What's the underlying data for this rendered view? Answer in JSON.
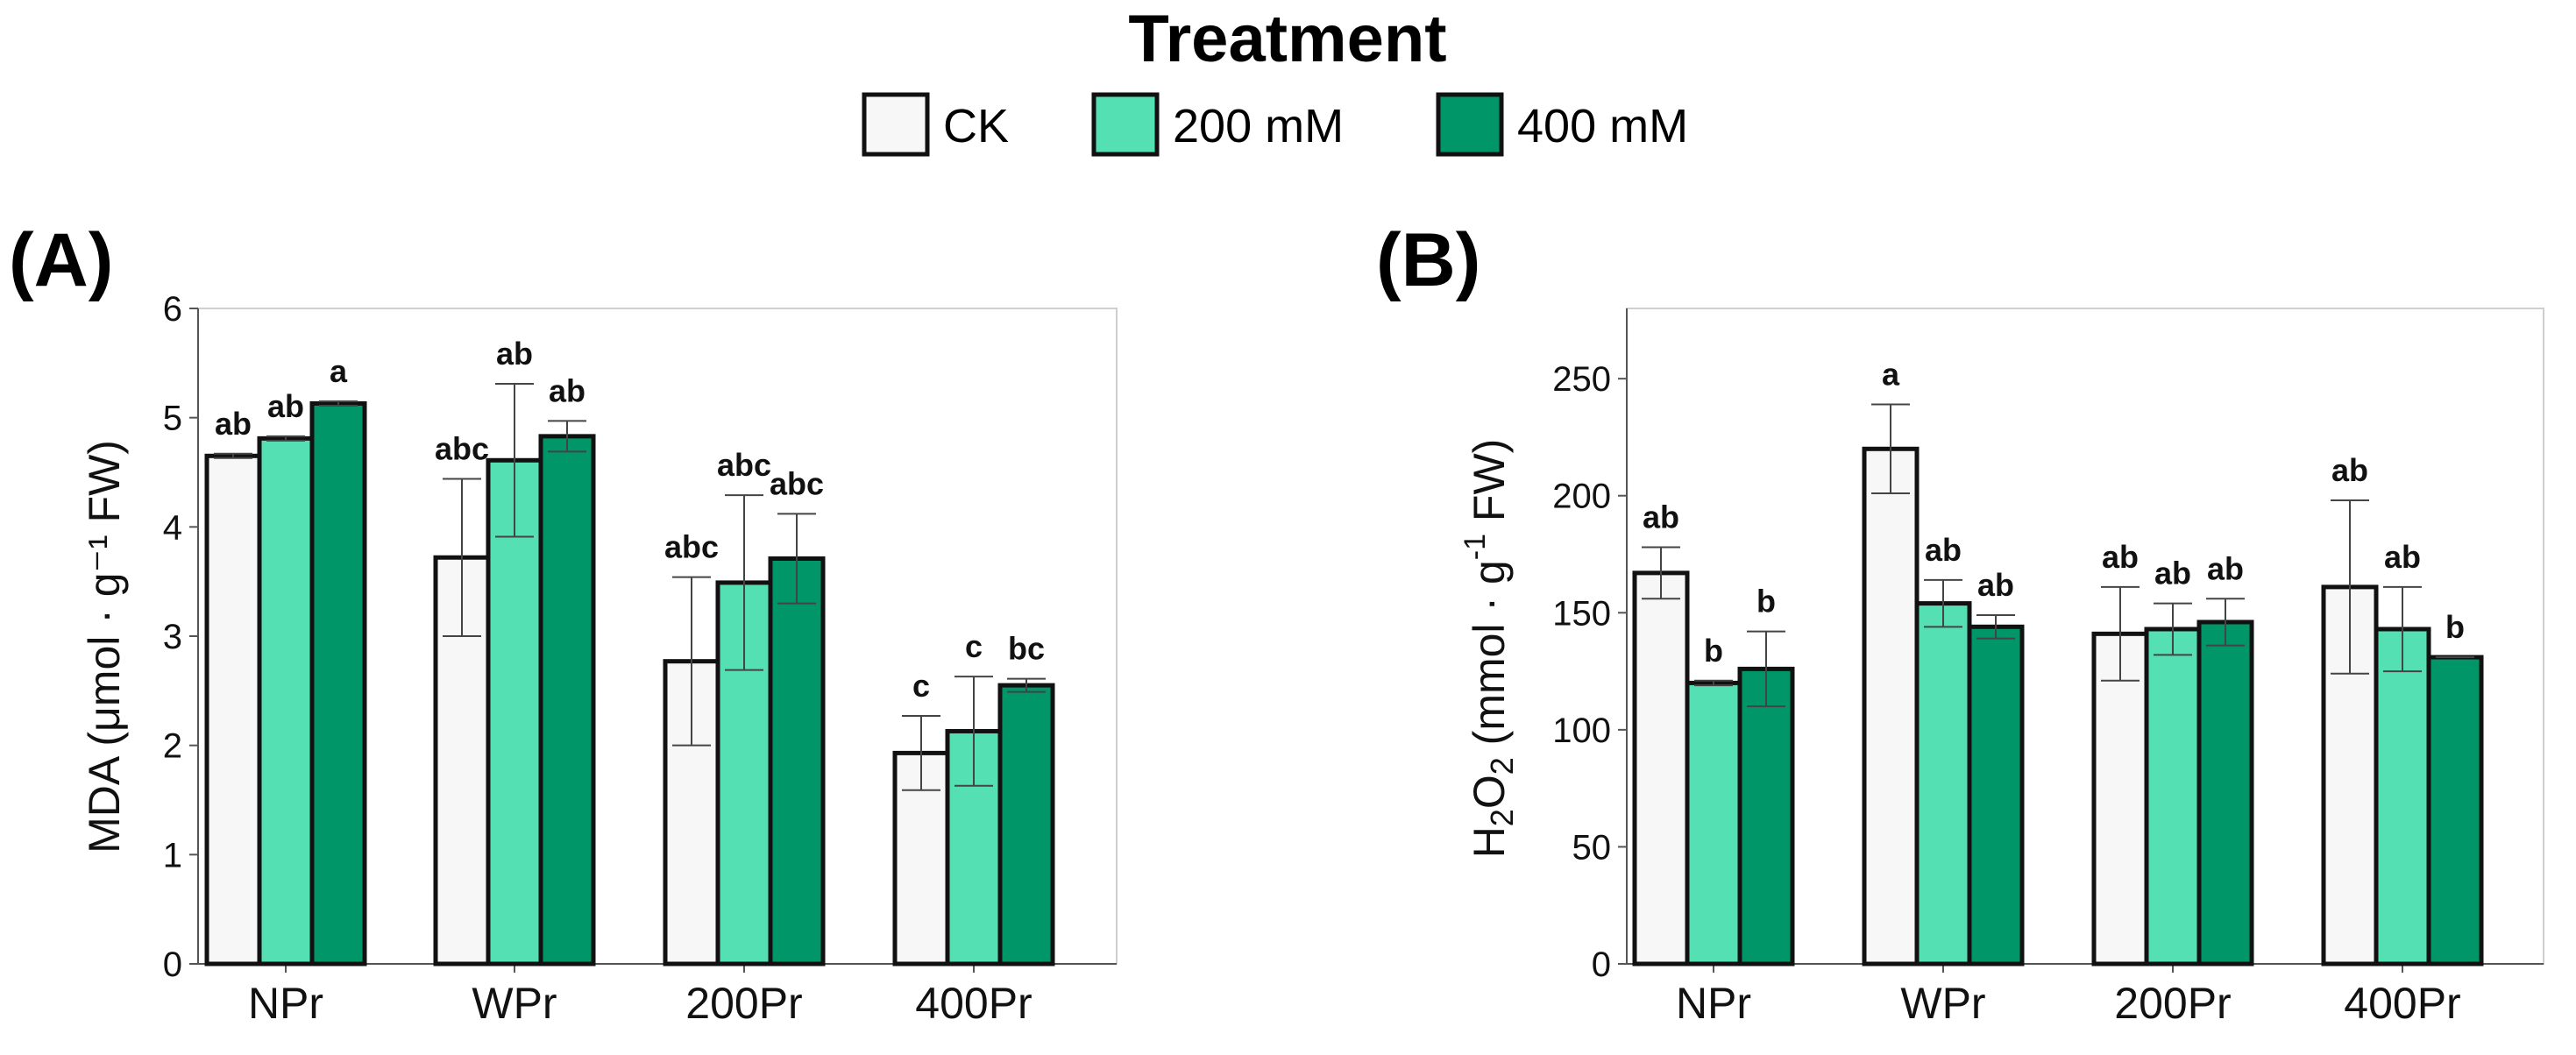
{
  "legend": {
    "title": "Treatment",
    "items": [
      {
        "label": "CK",
        "color": "#f7f7f7"
      },
      {
        "label": "200 mM",
        "color": "#55e0b3"
      },
      {
        "label": "400 mM",
        "color": "#009668"
      }
    ]
  },
  "chart_data": [
    {
      "type": "bar",
      "panel_label": "(A)",
      "title": "",
      "xlabel": "",
      "ylabel": "MDA (μmol · g⁻¹ FW)",
      "ylim": [
        0,
        6
      ],
      "yticks": [
        "0",
        "1",
        "2",
        "3",
        "4",
        "5",
        "6"
      ],
      "categories": [
        "NPr",
        "WPr",
        "200Pr",
        "400Pr"
      ],
      "series": [
        {
          "name": "CK",
          "color": "#f7f7f7",
          "values": [
            4.65,
            3.72,
            2.77,
            1.93
          ],
          "errors": [
            0.02,
            0.72,
            0.77,
            0.34
          ],
          "labels": [
            "ab",
            "abc",
            "abc",
            "c"
          ]
        },
        {
          "name": "200 mM",
          "color": "#55e0b3",
          "values": [
            4.81,
            4.61,
            3.49,
            2.13
          ],
          "errors": [
            0.02,
            0.7,
            0.8,
            0.5
          ],
          "labels": [
            "ab",
            "ab",
            "abc",
            "c"
          ]
        },
        {
          "name": "400 mM",
          "color": "#009668",
          "values": [
            5.13,
            4.83,
            3.71,
            2.55
          ],
          "errors": [
            0.02,
            0.14,
            0.41,
            0.06
          ],
          "labels": [
            "a",
            "ab",
            "abc",
            "bc"
          ]
        }
      ]
    },
    {
      "type": "bar",
      "panel_label": "(B)",
      "title": "",
      "xlabel": "",
      "ylabel_parts": [
        "H",
        "2",
        "O",
        "2",
        " (mmol · g",
        "-1",
        " FW)"
      ],
      "ylim": [
        0,
        280
      ],
      "yticks": [
        "0",
        "50",
        "100",
        "150",
        "200",
        "250"
      ],
      "ytick_values": [
        0,
        50,
        100,
        150,
        200,
        250
      ],
      "categories": [
        "NPr",
        "WPr",
        "200Pr",
        "400Pr"
      ],
      "series": [
        {
          "name": "CK",
          "color": "#f7f7f7",
          "values": [
            167,
            220,
            141,
            161
          ],
          "errors": [
            11,
            19,
            20,
            37
          ],
          "labels": [
            "ab",
            "a",
            "ab",
            "ab"
          ]
        },
        {
          "name": "200 mM",
          "color": "#55e0b3",
          "values": [
            120,
            154,
            143,
            143
          ],
          "errors": [
            1,
            10,
            11,
            18
          ],
          "labels": [
            "b",
            "ab",
            "ab",
            "ab"
          ]
        },
        {
          "name": "400 mM",
          "color": "#009668",
          "values": [
            126,
            144,
            146,
            131
          ],
          "errors": [
            16,
            5,
            10,
            0
          ],
          "labels": [
            "b",
            "ab",
            "ab",
            "b"
          ]
        }
      ]
    }
  ]
}
